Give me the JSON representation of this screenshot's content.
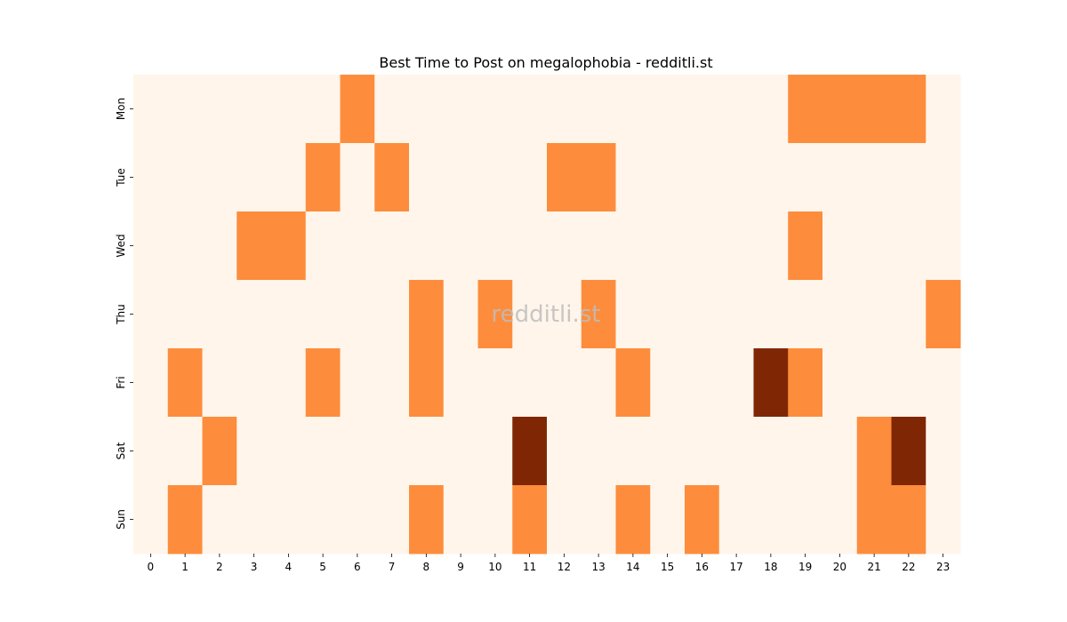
{
  "chart_data": {
    "type": "heatmap",
    "title": "Best Time to Post on megalophobia - redditli.st",
    "watermark": "redditli.st",
    "x": [
      "0",
      "1",
      "2",
      "3",
      "4",
      "5",
      "6",
      "7",
      "8",
      "9",
      "10",
      "11",
      "12",
      "13",
      "14",
      "15",
      "16",
      "17",
      "18",
      "19",
      "20",
      "21",
      "22",
      "23"
    ],
    "y": [
      "Mon",
      "Tue",
      "Wed",
      "Thu",
      "Fri",
      "Sat",
      "Sun"
    ],
    "values": [
      [
        0,
        0,
        0,
        0,
        0,
        0,
        1,
        0,
        0,
        0,
        0,
        0,
        0,
        0,
        0,
        0,
        0,
        0,
        0,
        1,
        1,
        1,
        1,
        0
      ],
      [
        0,
        0,
        0,
        0,
        0,
        1,
        0,
        1,
        0,
        0,
        0,
        0,
        1,
        1,
        0,
        0,
        0,
        0,
        0,
        0,
        0,
        0,
        0,
        0
      ],
      [
        0,
        0,
        0,
        1,
        1,
        0,
        0,
        0,
        0,
        0,
        0,
        0,
        0,
        0,
        0,
        0,
        0,
        0,
        0,
        1,
        0,
        0,
        0,
        0
      ],
      [
        0,
        0,
        0,
        0,
        0,
        0,
        0,
        0,
        1,
        0,
        1,
        0,
        0,
        1,
        0,
        0,
        0,
        0,
        0,
        0,
        0,
        0,
        0,
        1
      ],
      [
        0,
        1,
        0,
        0,
        0,
        1,
        0,
        0,
        1,
        0,
        0,
        0,
        0,
        0,
        1,
        0,
        0,
        0,
        2,
        1,
        0,
        0,
        0,
        0
      ],
      [
        0,
        0,
        1,
        0,
        0,
        0,
        0,
        0,
        0,
        0,
        0,
        2,
        0,
        0,
        0,
        0,
        0,
        0,
        0,
        0,
        0,
        1,
        2,
        0
      ],
      [
        0,
        1,
        0,
        0,
        0,
        0,
        0,
        0,
        1,
        0,
        0,
        1,
        0,
        0,
        1,
        0,
        1,
        0,
        0,
        0,
        0,
        1,
        1,
        0
      ]
    ],
    "colors": [
      "#fff5eb",
      "#fd8d3c",
      "#7f2704"
    ]
  }
}
